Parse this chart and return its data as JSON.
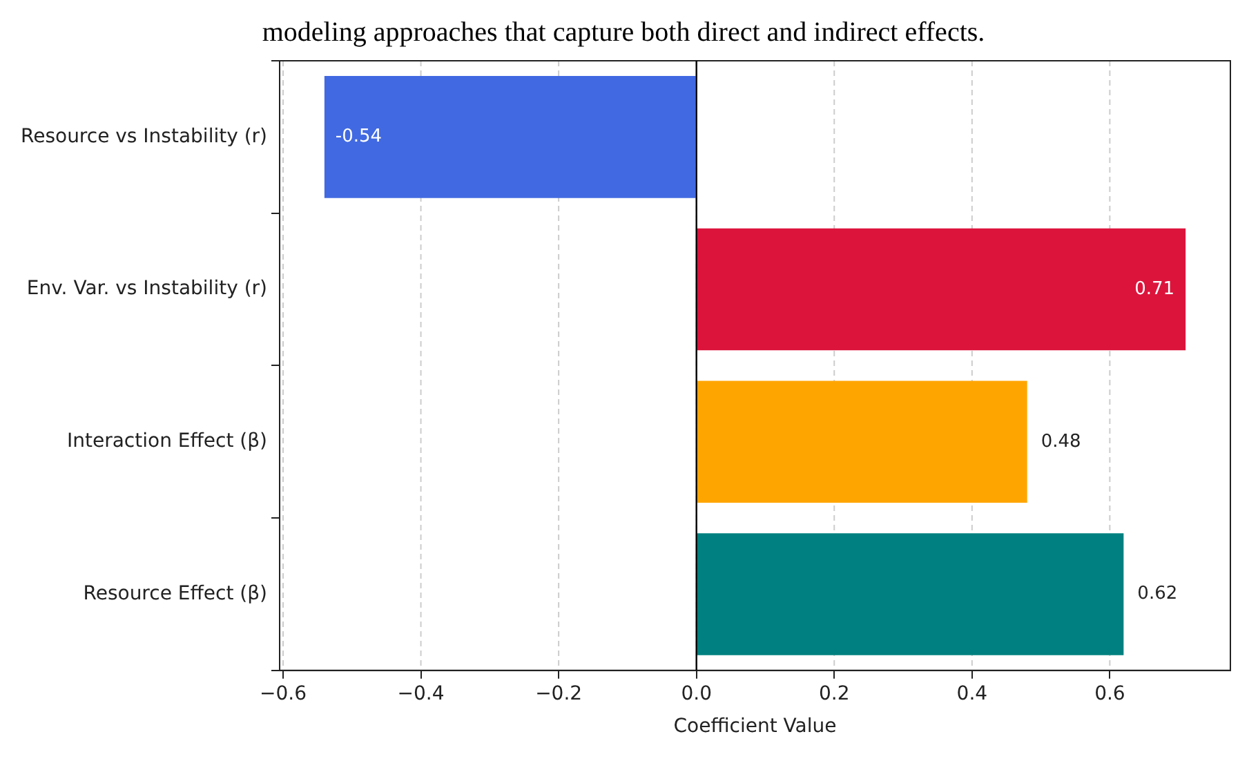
{
  "chart_data": {
    "type": "bar",
    "orientation": "horizontal",
    "title": "modeling approaches that capture both direct and indirect effects.",
    "xlabel": "Coefficient Value",
    "categories": [
      "Resource vs Instability (r)",
      "Env. Var. vs Instability (r)",
      "Interaction Effect (β)",
      "Resource Effect (β)"
    ],
    "values": [
      -0.54,
      0.71,
      0.48,
      0.62
    ],
    "colors": [
      "#4169e1",
      "#dc143c",
      "#ffa500",
      "#008080"
    ],
    "xlim": [
      -0.605,
      0.775
    ],
    "xticks": [
      {
        "value": -0.6,
        "label": "−0.6"
      },
      {
        "value": -0.4,
        "label": "−0.4"
      },
      {
        "value": -0.2,
        "label": "−0.2"
      },
      {
        "value": 0,
        "label": "0.0"
      },
      {
        "value": 0.2,
        "label": "0.2"
      },
      {
        "value": 0.4,
        "label": "0.4"
      },
      {
        "value": 0.6,
        "label": "0.6"
      }
    ],
    "ref_lines": [
      {
        "axis": "x",
        "value": 0,
        "color": "#000000"
      }
    ],
    "grid": "x",
    "legend": false,
    "data_labels": true
  }
}
